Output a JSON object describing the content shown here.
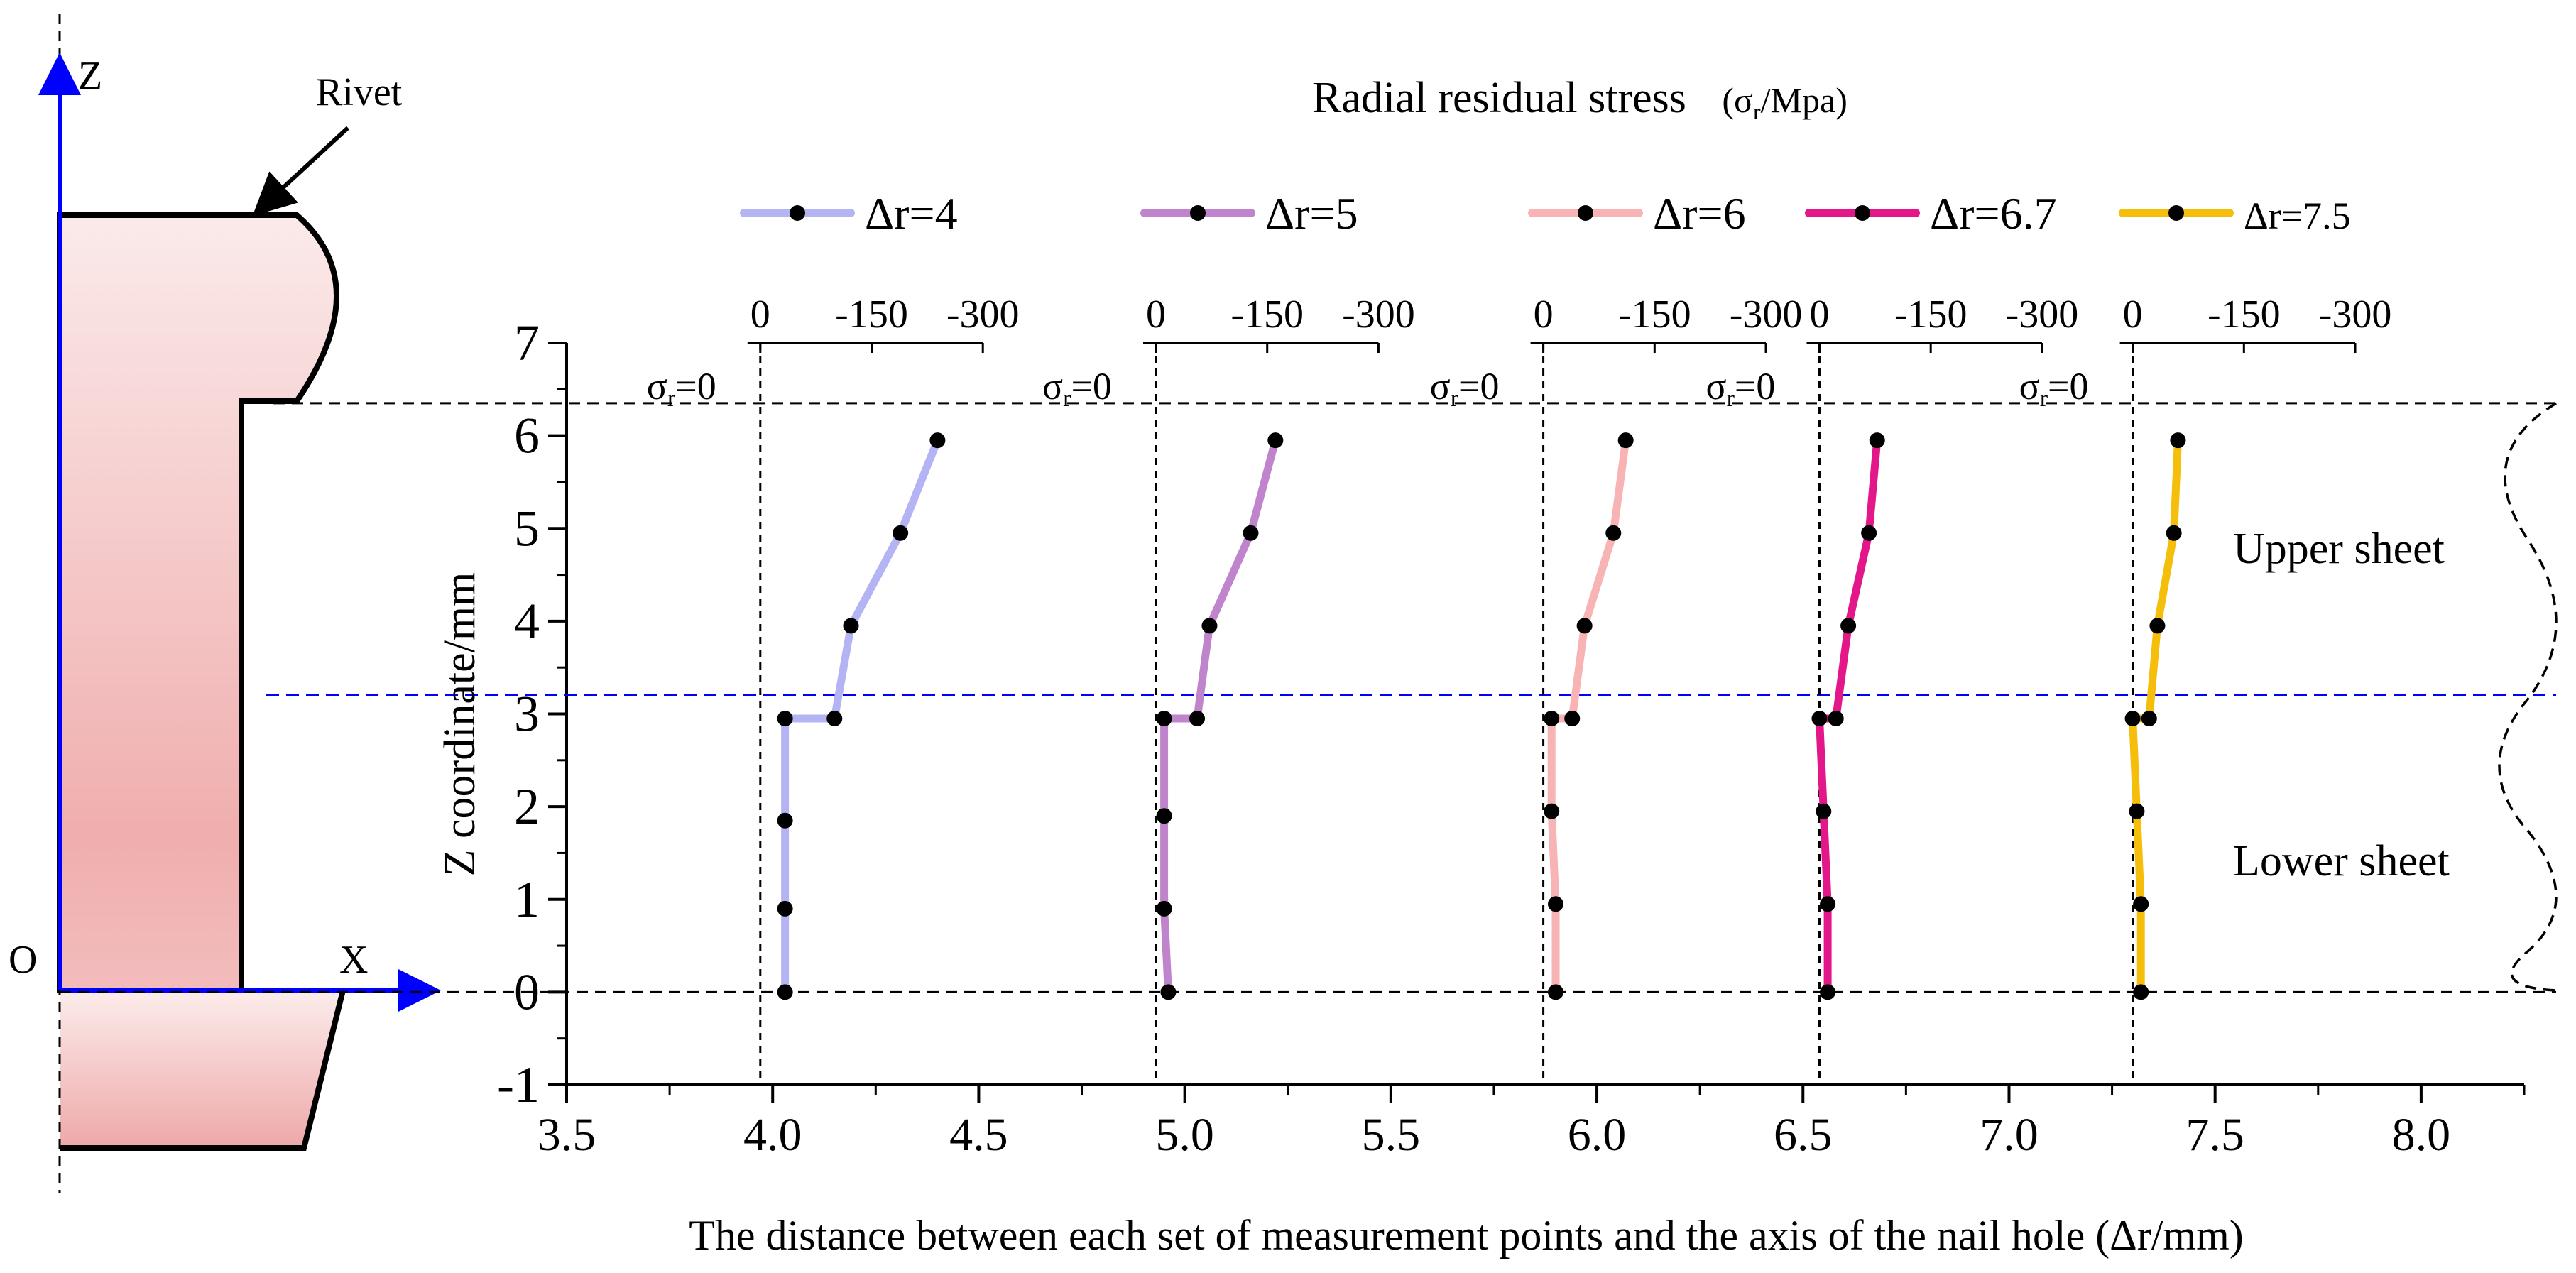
{
  "diagram": {
    "axis_z_label": "Z",
    "axis_x_label": "X",
    "origin_label": "O",
    "rivet_label": "Rivet",
    "upper_sheet_label": "Upper sheet",
    "lower_sheet_label": "Lower sheet"
  },
  "chart_data": {
    "type": "line",
    "title": "Radial residual stress",
    "title_unit": "(σr/Mpa)",
    "title_unit_sym": "σ",
    "title_unit_sub": "r",
    "title_unit_rest": "/Mpa",
    "xlabel": "The distance between each set of measurement points and the axis of the nail hole  (Δr/mm)",
    "ylabel": "Z coordinate/mm",
    "xlim": [
      3.5,
      8.25
    ],
    "ylim": [
      -1,
      7
    ],
    "xticks": [
      "3.5",
      "4.0",
      "4.5",
      "5.0",
      "5.5",
      "6.0",
      "6.5",
      "7.0",
      "7.5",
      "8.0"
    ],
    "xtick_values": [
      3.5,
      4.0,
      4.5,
      5.0,
      5.5,
      6.0,
      6.5,
      7.0,
      7.5,
      8.0
    ],
    "yticks": [
      "-1",
      "0",
      "1",
      "2",
      "3",
      "4",
      "5",
      "6",
      "7"
    ],
    "ytick_values": [
      -1,
      0,
      1,
      2,
      3,
      4,
      5,
      6,
      7
    ],
    "stress_ticks": [
      "0",
      "-150",
      "-300"
    ],
    "stress_tick_values": [
      0,
      -150,
      -300
    ],
    "zero_label": "σr=0",
    "zero_label_sym": "σ",
    "zero_label_sub": "r",
    "zero_label_rest": "=0",
    "interface_z": 3.2,
    "rivet_head_z": 6.35,
    "series": [
      {
        "name": "Δr=4",
        "color": "#b4b4f5",
        "base_x": 3.97,
        "z": [
          0,
          0.9,
          1.85,
          2.95,
          2.95,
          3.95,
          4.95,
          5.95
        ],
        "x": [
          4.03,
          4.03,
          4.03,
          4.03,
          4.15,
          4.19,
          4.31,
          4.4
        ]
      },
      {
        "name": "Δr=5",
        "color": "#c084cc",
        "base_x": 4.93,
        "z": [
          0,
          0.9,
          1.9,
          2.95,
          2.95,
          3.95,
          4.95,
          5.95
        ],
        "x": [
          4.96,
          4.95,
          4.95,
          4.95,
          5.03,
          5.06,
          5.16,
          5.22
        ]
      },
      {
        "name": "Δr=6",
        "color": "#f8b4b4",
        "base_x": 5.87,
        "z": [
          0,
          0.95,
          1.95,
          2.95,
          2.95,
          3.95,
          4.95,
          5.95
        ],
        "x": [
          5.9,
          5.9,
          5.89,
          5.89,
          5.94,
          5.97,
          6.04,
          6.07
        ]
      },
      {
        "name": "Δr=6.7",
        "color": "#e4178a",
        "base_x": 6.54,
        "z": [
          0,
          0.95,
          1.95,
          2.95,
          2.95,
          3.95,
          4.95,
          5.95
        ],
        "x": [
          6.56,
          6.56,
          6.55,
          6.54,
          6.58,
          6.61,
          6.66,
          6.68
        ]
      },
      {
        "name": "Δr=7.5",
        "color": "#f5be0a",
        "base_x": 7.3,
        "z": [
          0,
          0.95,
          1.95,
          2.95,
          2.95,
          3.95,
          4.95,
          5.95
        ],
        "x": [
          7.32,
          7.32,
          7.31,
          7.3,
          7.34,
          7.36,
          7.4,
          7.41
        ]
      }
    ]
  }
}
